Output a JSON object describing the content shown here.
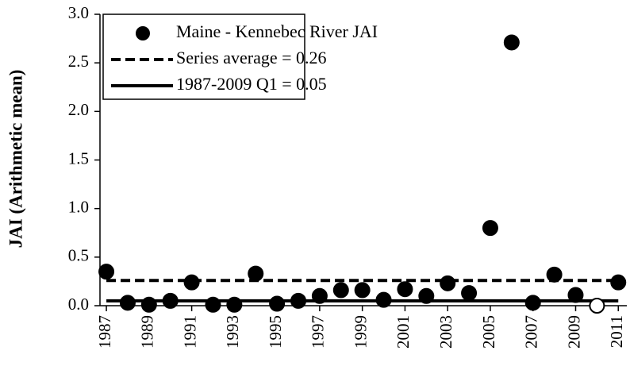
{
  "chart_data": {
    "type": "scatter",
    "y_label": "JAI (Arithmetic mean)",
    "x": [
      1987,
      1988,
      1989,
      1990,
      1991,
      1992,
      1993,
      1994,
      1995,
      1996,
      1997,
      1998,
      1999,
      2000,
      2001,
      2002,
      2003,
      2004,
      2005,
      2006,
      2007,
      2008,
      2009,
      2010,
      2011
    ],
    "series": [
      {
        "name": "Maine - Kennebec River JAI",
        "color": "#000000",
        "values": [
          0.35,
          0.03,
          0.01,
          0.05,
          0.24,
          0.01,
          0.01,
          0.33,
          0.02,
          0.05,
          0.1,
          0.16,
          0.16,
          0.06,
          0.17,
          0.1,
          0.23,
          0.13,
          0.8,
          2.71,
          0.03,
          0.32,
          0.11,
          0.0,
          0.24
        ],
        "hollow_points": [
          23
        ]
      }
    ],
    "reference_lines": [
      {
        "name": "Series average = 0.26",
        "value": 0.26,
        "style": "dashed",
        "color": "#000000"
      },
      {
        "name": "1987-2009 Q1 = 0.05",
        "value": 0.05,
        "style": "solid",
        "color": "#000000"
      }
    ],
    "xlim": [
      1986.7,
      2011.4
    ],
    "xticks": [
      1987,
      1989,
      1991,
      1993,
      1995,
      1997,
      1999,
      2001,
      2003,
      2005,
      2007,
      2009,
      2011
    ],
    "ylim": [
      0,
      3
    ],
    "yticks": [
      {
        "value": 0,
        "label": "0.0"
      },
      {
        "value": 0.5,
        "label": "0.5"
      },
      {
        "value": 1,
        "label": "1.0"
      },
      {
        "value": 1.5,
        "label": "1.5"
      },
      {
        "value": 2,
        "label": "2.0"
      },
      {
        "value": 2.5,
        "label": "2.5"
      },
      {
        "value": 3,
        "label": "3.0"
      }
    ],
    "legend": "top-left"
  }
}
